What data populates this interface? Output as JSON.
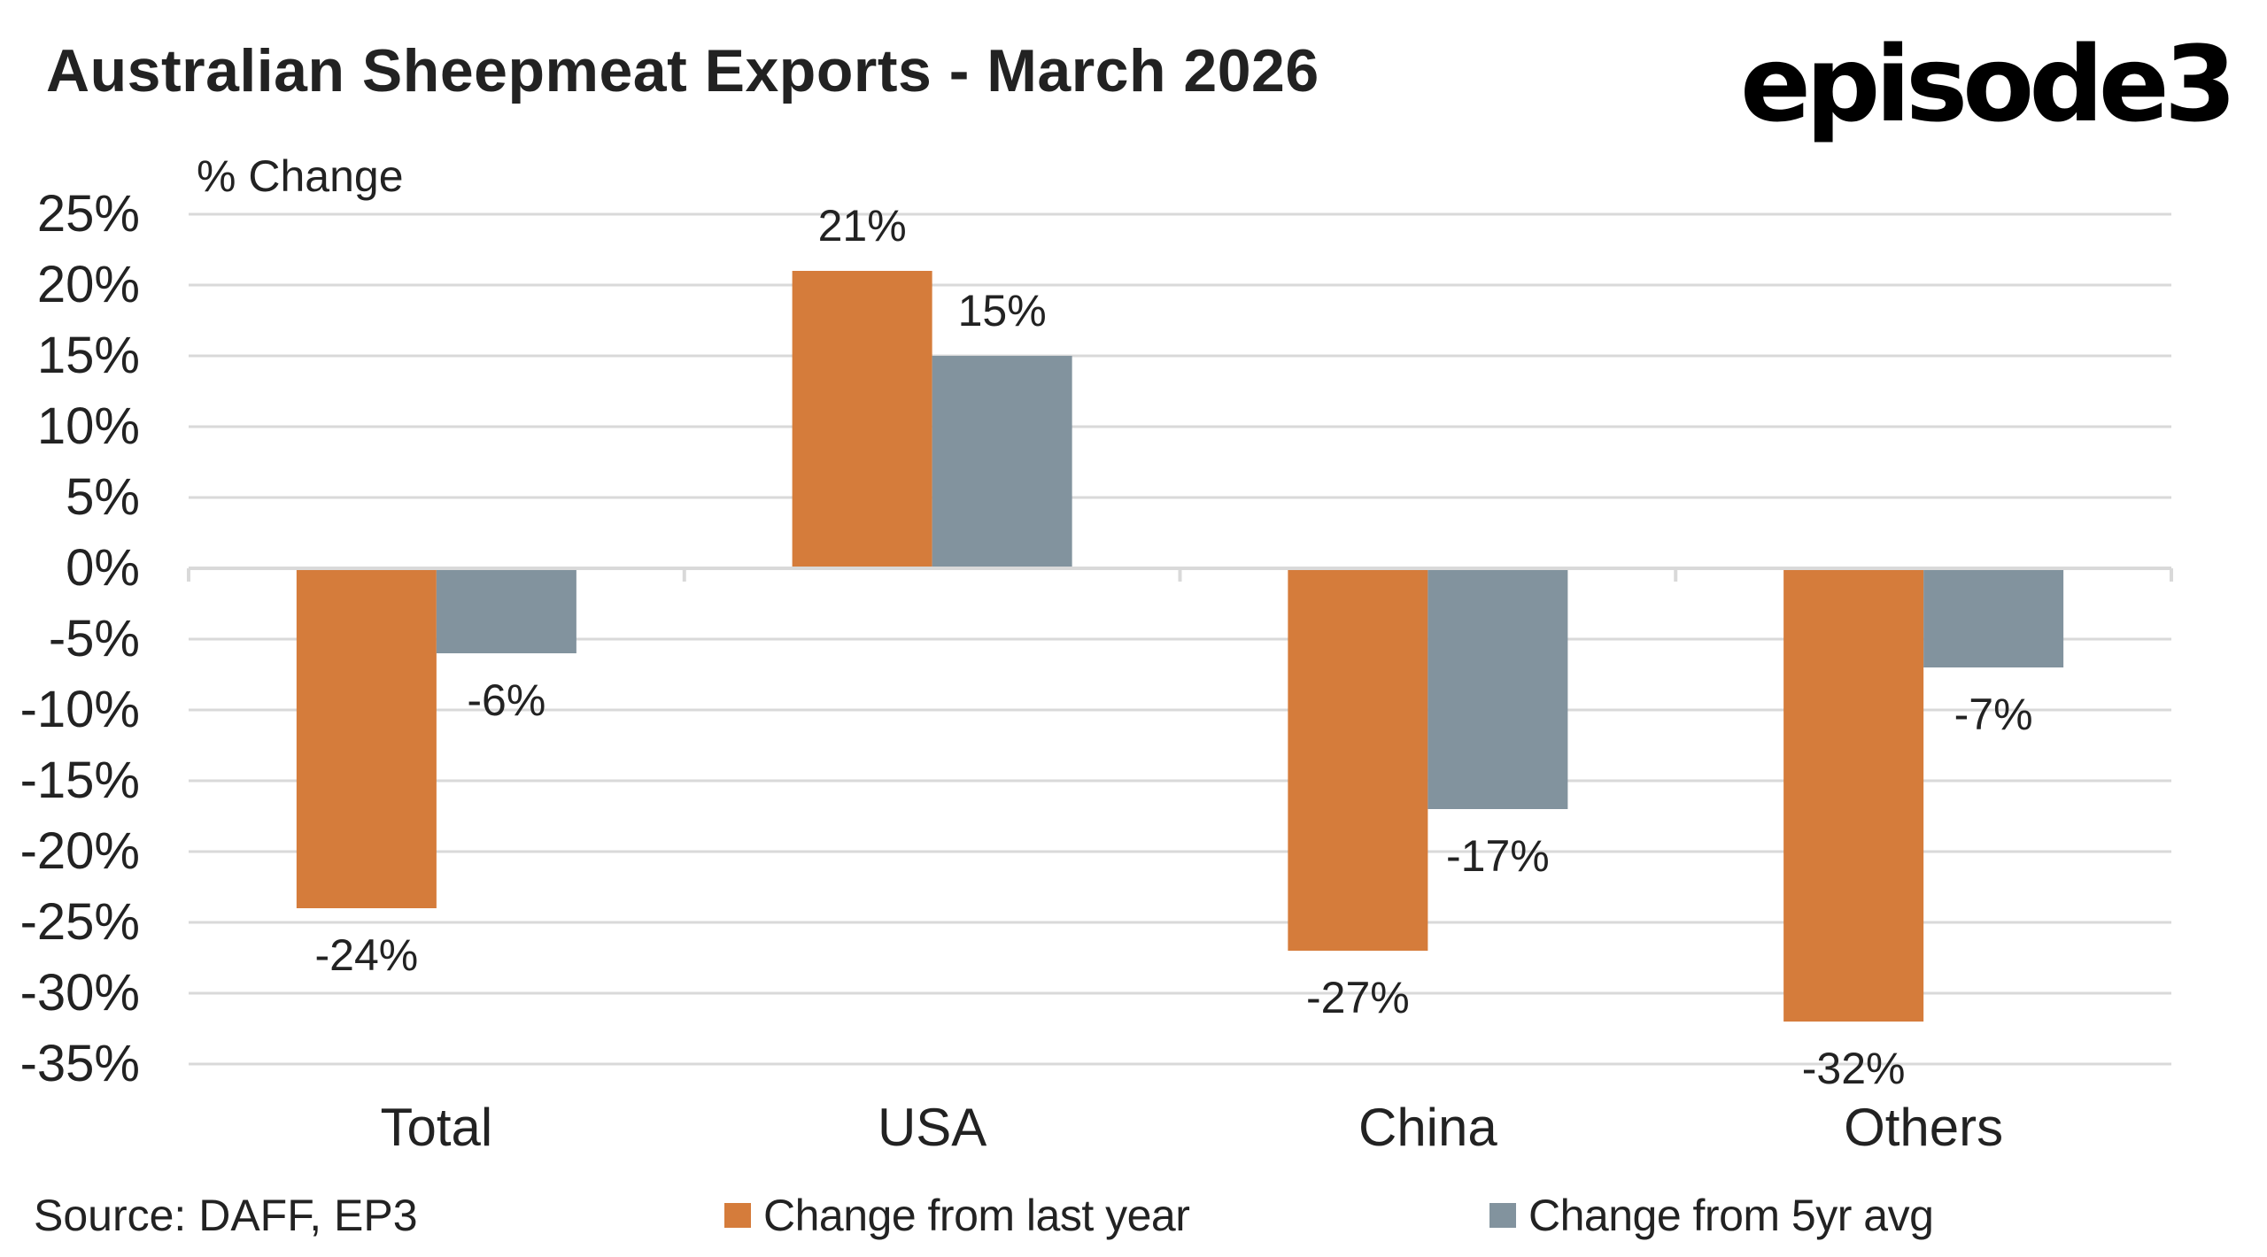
{
  "header": {
    "title": "Australian Sheepmeat Exports - March 2026",
    "logo_text": "episode3"
  },
  "footer": {
    "source": "Source: DAFF, EP3"
  },
  "colors": {
    "series_1": "#D57C3B",
    "series_2": "#82939E",
    "gridline": "#D9D9D9",
    "text": "#222222"
  },
  "chart_data": {
    "type": "bar",
    "title": "Australian Sheepmeat Exports - March 2026",
    "ylabel": "% Change",
    "xlabel": "",
    "categories": [
      "Total",
      "USA",
      "China",
      "Others"
    ],
    "series": [
      {
        "name": "Change from last year",
        "values": [
          -24,
          21,
          -27,
          -32
        ],
        "labels": [
          "-24%",
          "21%",
          "-27%",
          "-32%"
        ]
      },
      {
        "name": "Change from 5yr avg",
        "values": [
          -6,
          15,
          -17,
          -7
        ],
        "labels": [
          "-6%",
          "15%",
          "-17%",
          "-7%"
        ]
      }
    ],
    "ylim": [
      -35,
      25
    ],
    "yticks": [
      25,
      20,
      15,
      10,
      5,
      0,
      -5,
      -10,
      -15,
      -20,
      -25,
      -30,
      -35
    ],
    "ytick_labels": [
      "25%",
      "20%",
      "15%",
      "10%",
      "5%",
      "0%",
      "-5%",
      "-10%",
      "-15%",
      "-20%",
      "-25%",
      "-30%",
      "-35%"
    ],
    "grid": true,
    "legend_position": "bottom"
  }
}
